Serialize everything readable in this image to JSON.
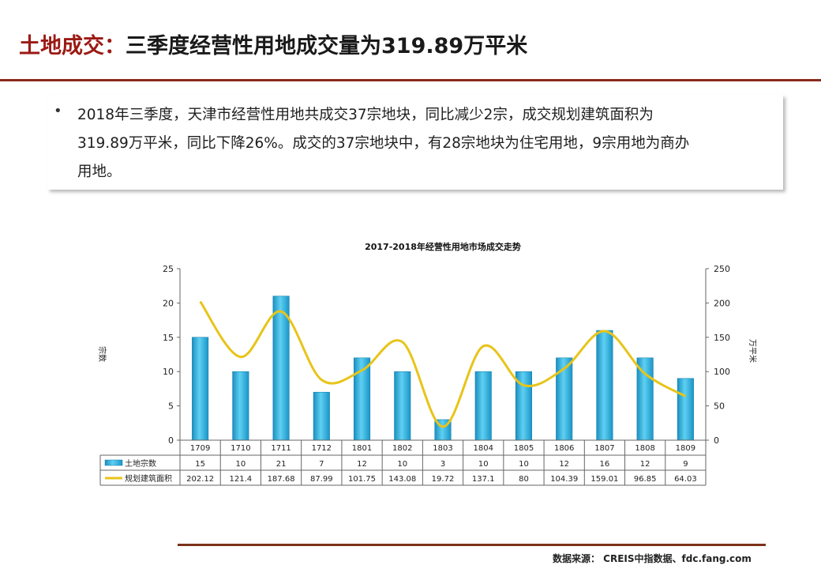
{
  "header": {
    "title_prefix": "土地成交：",
    "title_main": "三季度经营性用地成交量为319.89万平米"
  },
  "summary": {
    "bullet": "•",
    "lines": [
      "2018年三季度，天津市经营性用地共成交37宗地块，同比减少2宗，成交规划建筑面积为",
      "319.89万平米，同比下降26%。成交的37宗地块中，有28宗地块为住宅用地，9宗用地为商办",
      "用地。"
    ]
  },
  "chart_data": {
    "type": "bar",
    "title": "2017-2018年经营性用地市场成交走势",
    "categories": [
      "1709",
      "1710",
      "1711",
      "1712",
      "1801",
      "1802",
      "1803",
      "1804",
      "1805",
      "1806",
      "1807",
      "1808",
      "1809"
    ],
    "series": [
      {
        "name": "土地宗数",
        "type": "bar",
        "axis": "left",
        "color": "#2eb2e2",
        "values": [
          15,
          10,
          21,
          7,
          12,
          10,
          3,
          10,
          10,
          12,
          16,
          12,
          9
        ],
        "labels": [
          "15",
          "10",
          "21",
          "7",
          "12",
          "10",
          "3",
          "10",
          "10",
          "12",
          "16",
          "12",
          "9"
        ]
      },
      {
        "name": "规划建筑面积",
        "type": "line",
        "axis": "right",
        "color": "#e8c419",
        "values": [
          202.12,
          121.4,
          187.68,
          87.99,
          101.75,
          143.08,
          19.72,
          137.1,
          80,
          104.39,
          159.01,
          96.85,
          64.03
        ],
        "labels": [
          "202.12",
          "121.4",
          "187.68",
          "87.99",
          "101.75",
          "143.08",
          "19.72",
          "137.1",
          "80",
          "104.39",
          "159.01",
          "96.85",
          "64.03"
        ]
      }
    ],
    "y_left": {
      "label": "宗数",
      "ylim": [
        0,
        25
      ],
      "ticks": [
        "0",
        "5",
        "10",
        "15",
        "20",
        "25"
      ]
    },
    "y_right": {
      "label": "万平米",
      "ylim": [
        0,
        250
      ],
      "ticks": [
        "0",
        "50",
        "100",
        "150",
        "200",
        "250"
      ]
    },
    "legend": "data-table"
  },
  "footer": {
    "source": "数据来源： CREIS中指数据、fdc.fang.com"
  }
}
